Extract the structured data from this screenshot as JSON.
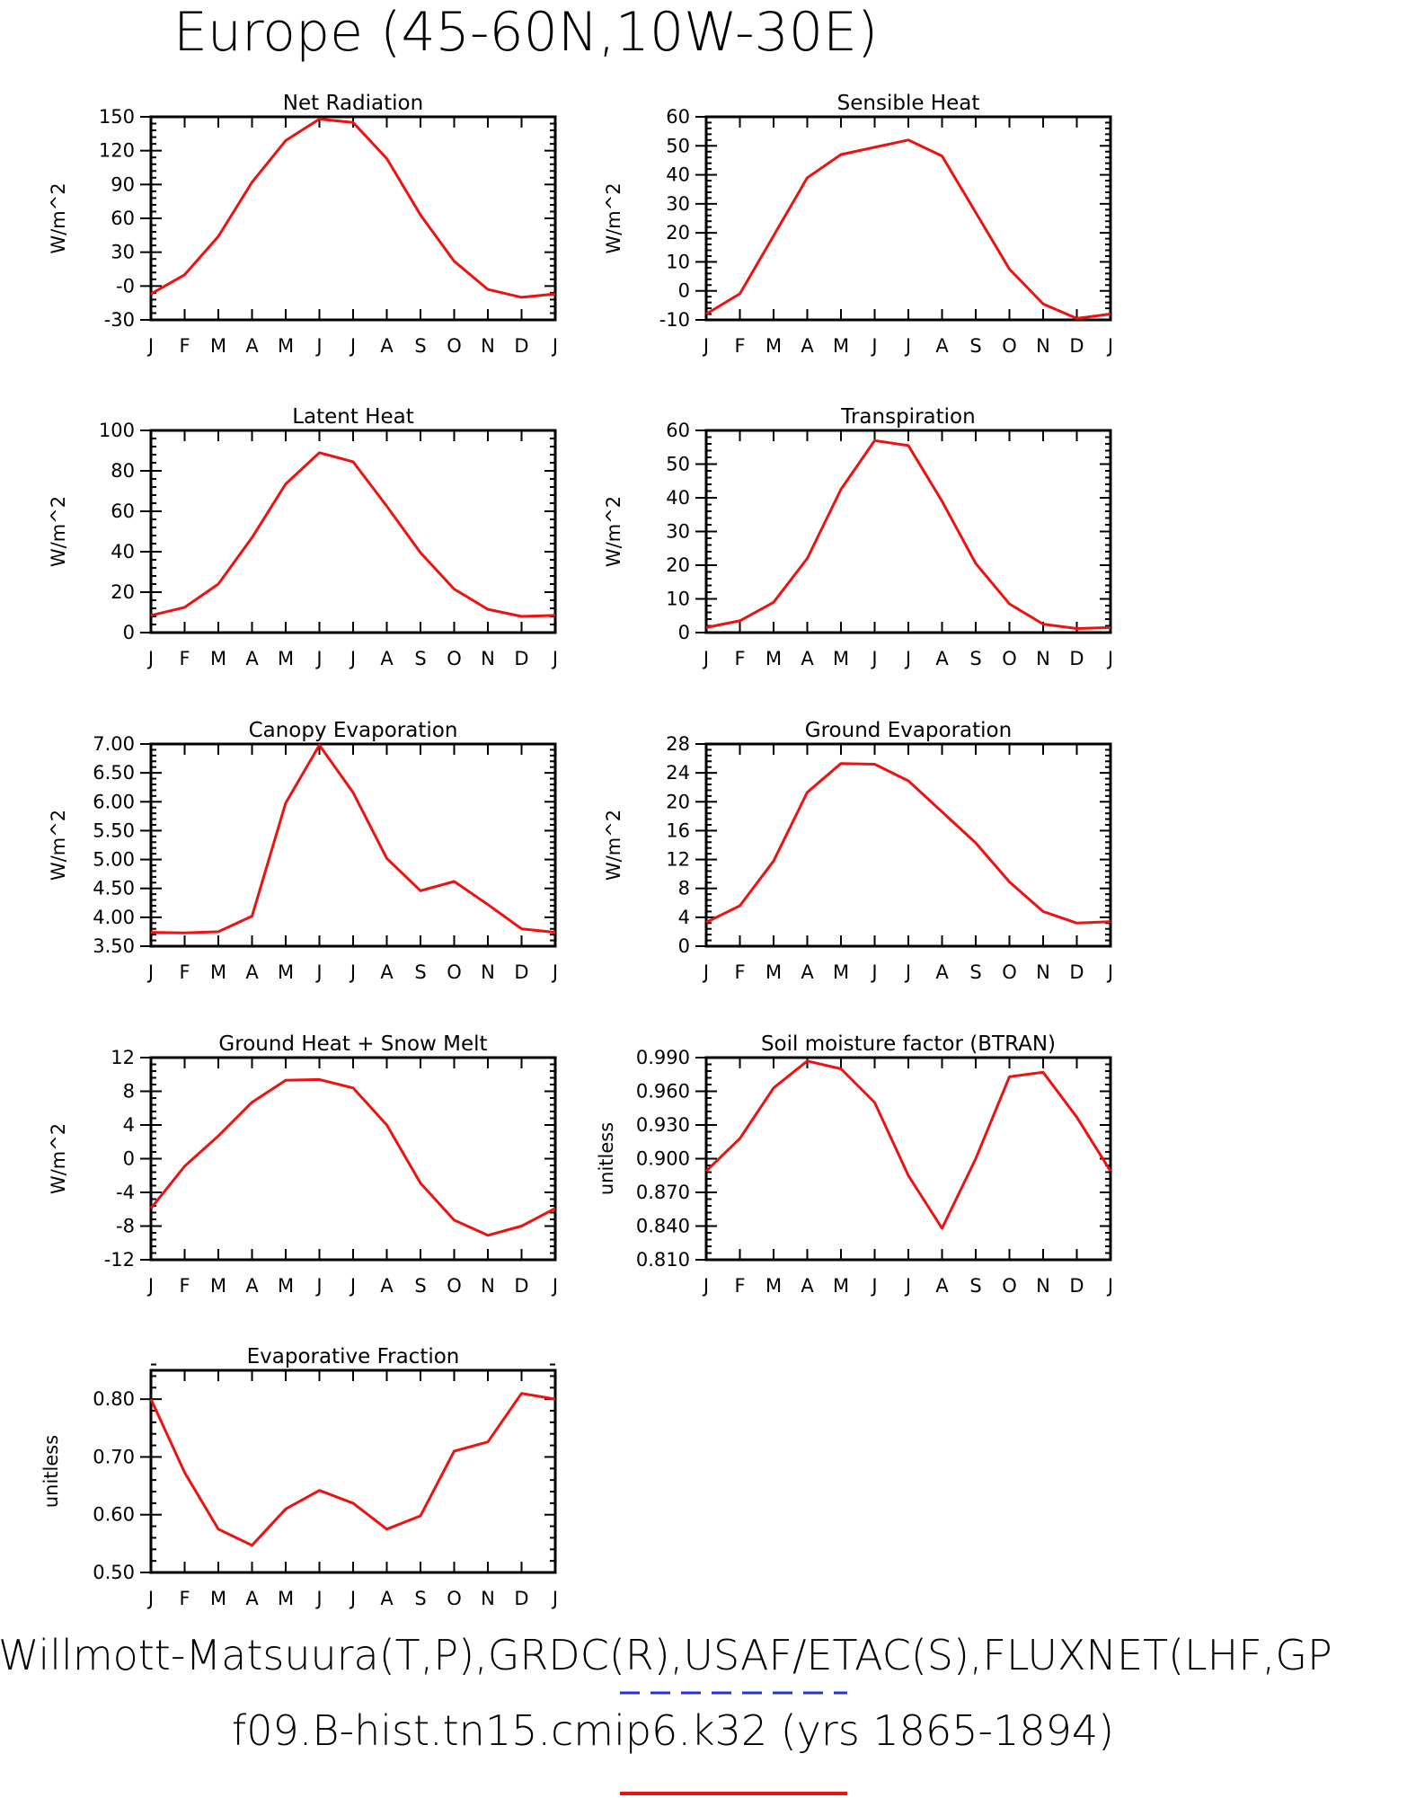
{
  "title": "Europe (45-60N,10W-30E)",
  "footer": {
    "line1": "Willmott-Matsuura(T,P),GRDC(R),USAF/ETAC(S),FLUXNET(LHF,GP",
    "line2": "f09.B-hist.tn15.cmip6.k32 (yrs 1865-1894)",
    "obs_line_color": "#2233dd",
    "model_line_color": "#ee1111"
  },
  "months": [
    "J",
    "F",
    "M",
    "A",
    "M",
    "J",
    "J",
    "A",
    "S",
    "O",
    "N",
    "D",
    "J"
  ],
  "line_color": "#ee1111",
  "chart_data": [
    {
      "type": "line",
      "title": "Net Radiation",
      "ylabel": "W/m^2",
      "ylim": [
        -30,
        150
      ],
      "yticks": [
        -30,
        0,
        30,
        60,
        90,
        120,
        150
      ],
      "ytick_labels": [
        "-30",
        "-0",
        "30",
        "60",
        "90",
        "120",
        "150"
      ],
      "values": [
        -7,
        10,
        44,
        92,
        129,
        148,
        145,
        113,
        63,
        22,
        -3,
        -10,
        -7
      ]
    },
    {
      "type": "line",
      "title": "Sensible Heat",
      "ylabel": "W/m^2",
      "ylim": [
        -10,
        60
      ],
      "yticks": [
        -10,
        0,
        10,
        20,
        30,
        40,
        50,
        60
      ],
      "ytick_labels": [
        "-10",
        "0",
        "10",
        "20",
        "30",
        "40",
        "50",
        "60"
      ],
      "values": [
        -8,
        -1,
        19,
        39,
        47,
        49.5,
        52,
        46.5,
        27,
        7.5,
        -4.5,
        -9.5,
        -8
      ]
    },
    {
      "type": "line",
      "title": "Latent Heat",
      "ylabel": "W/m^2",
      "ylim": [
        0,
        100
      ],
      "yticks": [
        0,
        20,
        40,
        60,
        80,
        100
      ],
      "ytick_labels": [
        "0",
        "20",
        "40",
        "60",
        "80",
        "100"
      ],
      "values": [
        8.5,
        12.5,
        24,
        47,
        73.5,
        89,
        84.5,
        62.5,
        39.5,
        21.5,
        11.5,
        8,
        8.5
      ]
    },
    {
      "type": "line",
      "title": "Transpiration",
      "ylabel": "W/m^2",
      "ylim": [
        0,
        60
      ],
      "yticks": [
        0,
        10,
        20,
        30,
        40,
        50,
        60
      ],
      "ytick_labels": [
        "0",
        "10",
        "20",
        "30",
        "40",
        "50",
        "60"
      ],
      "values": [
        1.5,
        3.5,
        9,
        22,
        42.5,
        57,
        55.5,
        39,
        20.5,
        8.5,
        2.5,
        1.2,
        1.5
      ]
    },
    {
      "type": "line",
      "title": "Canopy Evaporation",
      "ylabel": "W/m^2",
      "ylim": [
        3.5,
        7.0
      ],
      "yticks": [
        3.5,
        4.0,
        4.5,
        5.0,
        5.5,
        6.0,
        6.5,
        7.0
      ],
      "ytick_labels": [
        "3.50",
        "4.00",
        "4.50",
        "5.00",
        "5.50",
        "6.00",
        "6.50",
        "7.00"
      ],
      "values": [
        3.74,
        3.73,
        3.75,
        4.02,
        5.98,
        6.98,
        6.16,
        5.02,
        4.46,
        4.62,
        4.22,
        3.8,
        3.74
      ]
    },
    {
      "type": "line",
      "title": "Ground Evaporation",
      "ylabel": "W/m^2",
      "ylim": [
        0,
        28
      ],
      "yticks": [
        0,
        4,
        8,
        12,
        16,
        20,
        24,
        28
      ],
      "ytick_labels": [
        "0",
        "4",
        "8",
        "12",
        "16",
        "20",
        "24",
        "28"
      ],
      "values": [
        3.3,
        5.6,
        11.8,
        21.3,
        25.3,
        25.2,
        22.9,
        18.6,
        14.3,
        8.9,
        4.8,
        3.2,
        3.4
      ]
    },
    {
      "type": "line",
      "title": "Ground Heat + Snow Melt",
      "ylabel": "W/m^2",
      "ylim": [
        -12,
        12
      ],
      "yticks": [
        -12,
        -8,
        -4,
        0,
        4,
        8,
        12
      ],
      "ytick_labels": [
        "-12",
        "-8",
        "-4",
        "0",
        "4",
        "8",
        "12"
      ],
      "values": [
        -5.9,
        -0.9,
        2.7,
        6.7,
        9.3,
        9.4,
        8.4,
        4.0,
        -2.9,
        -7.3,
        -9.1,
        -8.0,
        -5.9
      ]
    },
    {
      "type": "line",
      "title": "Soil moisture factor (BTRAN)",
      "ylabel": "unitless",
      "ylim": [
        0.81,
        0.99
      ],
      "yticks": [
        0.81,
        0.84,
        0.87,
        0.9,
        0.93,
        0.96,
        0.99
      ],
      "ytick_labels": [
        "0.810",
        "0.840",
        "0.870",
        "0.900",
        "0.930",
        "0.960",
        "0.990"
      ],
      "values": [
        0.889,
        0.918,
        0.963,
        0.987,
        0.98,
        0.95,
        0.885,
        0.838,
        0.9,
        0.973,
        0.977,
        0.937,
        0.889
      ]
    },
    {
      "type": "line",
      "title": "Evaporative Fraction",
      "ylabel": "unitless",
      "ylim": [
        0.5,
        0.85
      ],
      "yticks": [
        0.5,
        0.6,
        0.7,
        0.8
      ],
      "ytick_labels": [
        "0.50",
        "0.60",
        "0.70",
        "0.80"
      ],
      "values": [
        0.8,
        0.673,
        0.575,
        0.547,
        0.61,
        0.642,
        0.62,
        0.575,
        0.598,
        0.71,
        0.726,
        0.81,
        0.8
      ]
    }
  ]
}
